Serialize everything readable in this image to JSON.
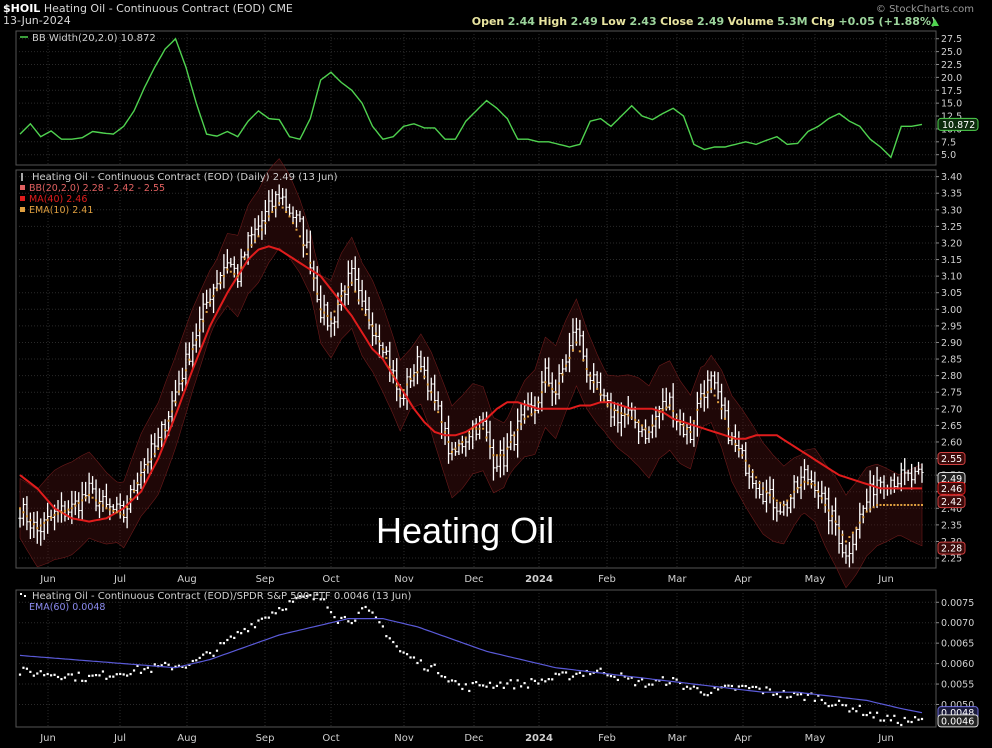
{
  "header": {
    "symbol": "$HOIL",
    "name": "Heating Oil - Continuous Contract (EOD)",
    "exchange": "CME",
    "date": "13-Jun-2024",
    "credit": "© StockCharts.com",
    "quote": {
      "open_label": "Open",
      "open": "2.44",
      "high_label": "High",
      "high": "2.49",
      "low_label": "Low",
      "low": "2.43",
      "close_label": "Close",
      "close": "2.49",
      "volume_label": "Volume",
      "volume": "5.3M",
      "chg_label": "Chg",
      "chg": "+0.05 (+1.88%)"
    }
  },
  "colors": {
    "background": "#000000",
    "grid": "#2a2a2a",
    "bar": "#ffffff",
    "ma": "#e01c1c",
    "bb_band": "#5a1414",
    "ema10": "#e0a040",
    "bbwidth": "#4fd24f",
    "ratio_ema": "#5a5ad8",
    "axis_text": "#d0d0d0"
  },
  "chart_data": [
    {
      "type": "line",
      "title": "BB Width(20,2.0) 10.872",
      "x_labels": [
        "Jun",
        "Jul",
        "Aug",
        "Sep",
        "Oct",
        "Nov",
        "Dec",
        "2024",
        "Feb",
        "Mar",
        "Apr",
        "May",
        "Jun"
      ],
      "y_ticks": [
        5.0,
        7.5,
        10.0,
        12.5,
        15.0,
        17.5,
        20.0,
        22.5,
        25.0,
        27.5
      ],
      "y_tick_labels": [
        "5.0",
        "7.5",
        "10.0",
        "12.5",
        "15.0",
        "17.5",
        "20.0",
        "22.5",
        "25.0",
        "27.5"
      ],
      "ylim": [
        3.0,
        29.0
      ],
      "last_value_label": "10.872",
      "series": [
        {
          "name": "BB Width(20,2.0)",
          "x": [
            0,
            3,
            6,
            9,
            12,
            15,
            18,
            21,
            24,
            27,
            30,
            33,
            36,
            39,
            42,
            45,
            48,
            51,
            54,
            57,
            60,
            63,
            66,
            69,
            72,
            75,
            78,
            81,
            84,
            87,
            90,
            93,
            96,
            99,
            102,
            105,
            108,
            111,
            114,
            117,
            120,
            123,
            126,
            129,
            132,
            135,
            138,
            141,
            144,
            147,
            150,
            153,
            156,
            159,
            162,
            165,
            168,
            171,
            174,
            177,
            180,
            183,
            186,
            189,
            192,
            195,
            198,
            201,
            204,
            207,
            210,
            213,
            216,
            219,
            222,
            225,
            228,
            231,
            234,
            237,
            240,
            243,
            246,
            249,
            252,
            255,
            258,
            261
          ],
          "values": [
            9.0,
            11.0,
            8.5,
            9.6,
            8.0,
            8.0,
            8.3,
            9.5,
            9.2,
            9.0,
            10.5,
            13.5,
            18.0,
            22.0,
            25.5,
            27.5,
            22.0,
            15.0,
            9.0,
            8.6,
            9.5,
            8.5,
            11.5,
            13.5,
            12.0,
            11.8,
            8.5,
            8.0,
            12.0,
            19.5,
            21.0,
            19.0,
            17.5,
            15.0,
            10.5,
            8.0,
            8.5,
            10.5,
            11.0,
            10.2,
            10.2,
            8.0,
            8.0,
            11.5,
            13.5,
            15.5,
            14.0,
            12.0,
            8.0,
            8.0,
            7.5,
            7.5,
            7.0,
            6.5,
            7.0,
            11.5,
            12.0,
            10.5,
            12.5,
            14.5,
            12.5,
            11.8,
            13.0,
            14.0,
            12.5,
            7.0,
            6.0,
            6.5,
            6.5,
            7.0,
            7.5,
            7.0,
            7.8,
            8.5,
            7.0,
            7.2,
            9.5,
            10.5,
            12.0,
            13.0,
            11.5,
            10.5,
            8.0,
            6.5,
            4.5,
            10.5,
            10.5,
            10.872
          ]
        }
      ]
    },
    {
      "type": "ohlc",
      "title": "Heating Oil - Continuous Contract (EOD) (Daily) 2.49 (13 Jun)",
      "overlay_text": "Heating Oil",
      "legend": [
        "BB(20,2.0) 2.28 - 2.42 - 2.55",
        "MA(40) 2.46",
        "EMA(10) 2.41"
      ],
      "x_labels": [
        "Jun",
        "Jul",
        "Aug",
        "Sep",
        "Oct",
        "Nov",
        "Dec",
        "2024",
        "Feb",
        "Mar",
        "Apr",
        "May",
        "Jun"
      ],
      "y_ticks": [
        2.25,
        2.3,
        2.35,
        2.4,
        2.45,
        2.5,
        2.55,
        2.6,
        2.65,
        2.7,
        2.75,
        2.8,
        2.85,
        2.9,
        2.95,
        3.0,
        3.05,
        3.1,
        3.15,
        3.2,
        3.25,
        3.3,
        3.35,
        3.4
      ],
      "y_tick_labels": [
        "2.25",
        "2.30",
        "2.35",
        "2.40",
        "2.45",
        "2.50",
        "2.55",
        "2.60",
        "2.65",
        "2.70",
        "2.75",
        "2.80",
        "2.85",
        "2.90",
        "2.95",
        "3.00",
        "3.05",
        "3.10",
        "3.15",
        "3.20",
        "3.25",
        "3.30",
        "3.35",
        "3.40"
      ],
      "ylim": [
        2.22,
        3.42
      ],
      "last_value_labels": [
        "2.55",
        "2.49",
        "2.46",
        "2.42",
        "2.28"
      ],
      "close_path": {
        "x": [
          0,
          5,
          10,
          15,
          20,
          25,
          30,
          35,
          40,
          45,
          50,
          55,
          60,
          63,
          66,
          69,
          72,
          75,
          78,
          81,
          84,
          87,
          90,
          93,
          96,
          99,
          102,
          105,
          108,
          110,
          113,
          116,
          119,
          122,
          125,
          128,
          131,
          134,
          137,
          140,
          143,
          146,
          149,
          152,
          155,
          158,
          161,
          164,
          167,
          170,
          173,
          176,
          179,
          182,
          185,
          188,
          191,
          194,
          197,
          200,
          203,
          206,
          209,
          212,
          215,
          218,
          221,
          224,
          227,
          230,
          233,
          236,
          239,
          242,
          245,
          248,
          251,
          254,
          257,
          261
        ],
        "y": [
          2.4,
          2.33,
          2.38,
          2.4,
          2.45,
          2.4,
          2.38,
          2.52,
          2.6,
          2.75,
          2.9,
          3.05,
          3.15,
          3.1,
          3.2,
          3.25,
          3.3,
          3.35,
          3.3,
          3.25,
          3.15,
          3.0,
          2.95,
          3.05,
          3.1,
          3.0,
          2.95,
          2.9,
          2.8,
          2.72,
          2.8,
          2.85,
          2.75,
          2.65,
          2.55,
          2.6,
          2.65,
          2.65,
          2.55,
          2.55,
          2.62,
          2.68,
          2.7,
          2.8,
          2.75,
          2.85,
          2.95,
          2.82,
          2.75,
          2.7,
          2.68,
          2.68,
          2.65,
          2.62,
          2.7,
          2.72,
          2.65,
          2.62,
          2.75,
          2.78,
          2.7,
          2.6,
          2.55,
          2.5,
          2.45,
          2.42,
          2.4,
          2.45,
          2.5,
          2.48,
          2.4,
          2.35,
          2.25,
          2.35,
          2.42,
          2.49,
          2.49,
          2.49,
          2.49,
          2.49
        ]
      },
      "series": [
        {
          "name": "MA(40)",
          "x": [
            0,
            5,
            10,
            15,
            20,
            25,
            30,
            35,
            40,
            45,
            50,
            55,
            60,
            63,
            66,
            69,
            72,
            75,
            78,
            81,
            84,
            87,
            90,
            93,
            96,
            99,
            102,
            105,
            108,
            111,
            114,
            117,
            120,
            123,
            126,
            129,
            132,
            135,
            138,
            141,
            144,
            147,
            150,
            153,
            156,
            159,
            162,
            165,
            168,
            171,
            174,
            177,
            180,
            183,
            186,
            189,
            192,
            195,
            198,
            201,
            204,
            207,
            210,
            213,
            216,
            219,
            222,
            225,
            228,
            231,
            234,
            237,
            240,
            243,
            246,
            249,
            252,
            255,
            258,
            261
          ],
          "values": [
            2.5,
            2.46,
            2.4,
            2.37,
            2.36,
            2.37,
            2.4,
            2.45,
            2.55,
            2.68,
            2.82,
            2.95,
            3.05,
            3.1,
            3.15,
            3.18,
            3.19,
            3.18,
            3.16,
            3.14,
            3.12,
            3.1,
            3.06,
            3.02,
            2.98,
            2.93,
            2.88,
            2.85,
            2.8,
            2.75,
            2.7,
            2.66,
            2.63,
            2.62,
            2.62,
            2.63,
            2.65,
            2.67,
            2.7,
            2.72,
            2.72,
            2.71,
            2.7,
            2.7,
            2.7,
            2.7,
            2.71,
            2.71,
            2.72,
            2.72,
            2.71,
            2.7,
            2.7,
            2.7,
            2.69,
            2.67,
            2.66,
            2.65,
            2.64,
            2.63,
            2.62,
            2.61,
            2.61,
            2.62,
            2.62,
            2.62,
            2.6,
            2.58,
            2.56,
            2.54,
            2.52,
            2.5,
            2.49,
            2.48,
            2.47,
            2.46,
            2.46,
            2.46,
            2.46,
            2.46
          ]
        },
        {
          "name": "EMA(10)",
          "x": [
            0,
            5,
            10,
            15,
            20,
            25,
            30,
            35,
            40,
            45,
            50,
            55,
            60,
            63,
            66,
            69,
            72,
            75,
            78,
            81,
            84,
            87,
            90,
            93,
            96,
            99,
            102,
            105,
            108,
            110,
            113,
            116,
            119,
            122,
            125,
            128,
            131,
            134,
            137,
            140,
            143,
            146,
            149,
            152,
            155,
            158,
            161,
            164,
            167,
            170,
            173,
            176,
            179,
            182,
            185,
            188,
            191,
            194,
            197,
            200,
            203,
            206,
            209,
            212,
            215,
            218,
            221,
            224,
            227,
            230,
            233,
            236,
            239,
            242,
            245,
            248,
            251,
            254,
            257,
            261
          ],
          "values": [
            2.4,
            2.34,
            2.38,
            2.4,
            2.44,
            2.4,
            2.38,
            2.5,
            2.58,
            2.72,
            2.88,
            3.02,
            3.12,
            3.1,
            3.18,
            3.22,
            3.28,
            3.32,
            3.28,
            3.22,
            3.14,
            3.0,
            2.97,
            3.04,
            3.08,
            3.0,
            2.95,
            2.88,
            2.8,
            2.74,
            2.79,
            2.82,
            2.75,
            2.66,
            2.57,
            2.6,
            2.64,
            2.64,
            2.56,
            2.56,
            2.62,
            2.67,
            2.69,
            2.78,
            2.75,
            2.83,
            2.9,
            2.82,
            2.76,
            2.71,
            2.69,
            2.68,
            2.66,
            2.63,
            2.69,
            2.71,
            2.66,
            2.63,
            2.73,
            2.76,
            2.7,
            2.61,
            2.56,
            2.51,
            2.46,
            2.43,
            2.41,
            2.45,
            2.48,
            2.47,
            2.41,
            2.36,
            2.3,
            2.34,
            2.39,
            2.41,
            2.41,
            2.41,
            2.41,
            2.41
          ]
        }
      ]
    },
    {
      "type": "scatter",
      "title": "Heating Oil - Continuous Contract (EOD)/SPDR S&P 500 ETF 0.0046 (13 Jun)",
      "legend": [
        "EMA(60) 0.0048"
      ],
      "x_labels": [
        "Jun",
        "Jul",
        "Aug",
        "Sep",
        "Oct",
        "Nov",
        "Dec",
        "2024",
        "Feb",
        "Mar",
        "Apr",
        "May",
        "Jun"
      ],
      "y_ticks": [
        0.005,
        0.0055,
        0.006,
        0.0065,
        0.007,
        0.0075
      ],
      "y_tick_labels": [
        "0.0050",
        "0.0055",
        "0.0060",
        "0.0065",
        "0.0070",
        "0.0075"
      ],
      "ylim": [
        0.00445,
        0.0078
      ],
      "last_value_labels": [
        "0.0048",
        "0.0046"
      ],
      "ratio_path": {
        "x": [
          0,
          10,
          20,
          30,
          40,
          50,
          58,
          66,
          70,
          76,
          82,
          88,
          92,
          96,
          100,
          104,
          110,
          116,
          122,
          128,
          134,
          140,
          146,
          152,
          158,
          164,
          170,
          176,
          182,
          188,
          194,
          200,
          206,
          212,
          218,
          224,
          230,
          236,
          242,
          248,
          254,
          261
        ],
        "y": [
          0.0058,
          0.00575,
          0.00565,
          0.0058,
          0.0059,
          0.006,
          0.0064,
          0.0069,
          0.0071,
          0.0074,
          0.0076,
          0.0076,
          0.0071,
          0.0071,
          0.0073,
          0.007,
          0.0063,
          0.006,
          0.0058,
          0.0054,
          0.0055,
          0.0055,
          0.0055,
          0.0056,
          0.0057,
          0.0058,
          0.0058,
          0.0056,
          0.0055,
          0.0056,
          0.0054,
          0.0053,
          0.0054,
          0.0054,
          0.0053,
          0.0052,
          0.0052,
          0.005,
          0.0049,
          0.0047,
          0.0046,
          0.0046
        ]
      },
      "series": [
        {
          "name": "EMA(60)",
          "x": [
            0,
            15,
            30,
            45,
            55,
            65,
            75,
            85,
            95,
            105,
            115,
            125,
            135,
            145,
            155,
            165,
            175,
            185,
            195,
            205,
            215,
            225,
            235,
            245,
            255,
            261
          ],
          "values": [
            0.0062,
            0.0061,
            0.006,
            0.0059,
            0.0061,
            0.0064,
            0.0067,
            0.0069,
            0.0071,
            0.0071,
            0.0069,
            0.0066,
            0.0063,
            0.0061,
            0.0059,
            0.0058,
            0.0057,
            0.0056,
            0.0055,
            0.0054,
            0.0053,
            0.0053,
            0.0052,
            0.0051,
            0.0049,
            0.0048
          ]
        }
      ]
    }
  ]
}
